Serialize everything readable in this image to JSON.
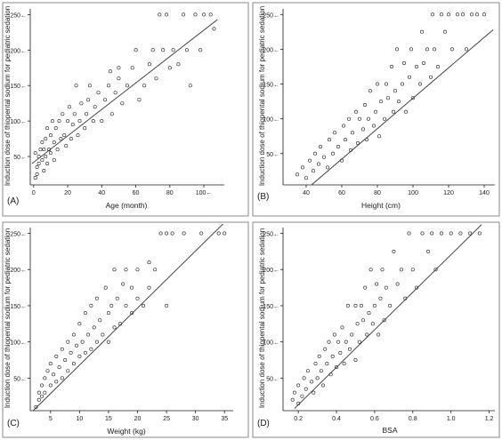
{
  "colors": {
    "background": "#ffffff",
    "panel_border": "#888888",
    "ink": "#1a1a1a",
    "fit_line": "#333333"
  },
  "chart_data": [
    {
      "type": "scatter",
      "panel_label": "(A)",
      "xlabel": "Age (month)",
      "ylabel": "Induction dose of thiopental sodium for pediatric sedation",
      "xlim": [
        -2,
        112
      ],
      "ylim": [
        10,
        258
      ],
      "xticks": [
        0,
        20,
        40,
        60,
        80,
        100
      ],
      "xtick_labels": [
        "0",
        "20",
        "40",
        "60",
        "80",
        "100←"
      ],
      "yticks": [
        50,
        100,
        150,
        200,
        250
      ],
      "ytick_labels": [
        "50←",
        "100←",
        "150←",
        "200←",
        "250←"
      ],
      "fit_line": {
        "x": [
          -1,
          108
        ],
        "y": [
          40,
          243
        ]
      },
      "points": [
        [
          1,
          20
        ],
        [
          2,
          25
        ],
        [
          2,
          35
        ],
        [
          3,
          40
        ],
        [
          3,
          50
        ],
        [
          1,
          55
        ],
        [
          4,
          60
        ],
        [
          5,
          45
        ],
        [
          5,
          70
        ],
        [
          6,
          30
        ],
        [
          6,
          60
        ],
        [
          7,
          75
        ],
        [
          7,
          50
        ],
        [
          8,
          40
        ],
        [
          8,
          90
        ],
        [
          9,
          60
        ],
        [
          10,
          55
        ],
        [
          10,
          80
        ],
        [
          11,
          100
        ],
        [
          12,
          70
        ],
        [
          12,
          45
        ],
        [
          13,
          90
        ],
        [
          14,
          60
        ],
        [
          15,
          100
        ],
        [
          16,
          75
        ],
        [
          17,
          110
        ],
        [
          18,
          80
        ],
        [
          19,
          65
        ],
        [
          20,
          100
        ],
        [
          21,
          120
        ],
        [
          22,
          75
        ],
        [
          23,
          95
        ],
        [
          24,
          110
        ],
        [
          25,
          150
        ],
        [
          26,
          80
        ],
        [
          27,
          100
        ],
        [
          28,
          125
        ],
        [
          30,
          90
        ],
        [
          31,
          110
        ],
        [
          32,
          130
        ],
        [
          33,
          150
        ],
        [
          35,
          100
        ],
        [
          36,
          120
        ],
        [
          38,
          140
        ],
        [
          40,
          100
        ],
        [
          42,
          130
        ],
        [
          44,
          150
        ],
        [
          45,
          170
        ],
        [
          46,
          110
        ],
        [
          48,
          140
        ],
        [
          50,
          160
        ],
        [
          50,
          175
        ],
        [
          52,
          125
        ],
        [
          55,
          150
        ],
        [
          58,
          175
        ],
        [
          60,
          200
        ],
        [
          62,
          130
        ],
        [
          65,
          150
        ],
        [
          68,
          180
        ],
        [
          70,
          200
        ],
        [
          72,
          160
        ],
        [
          74,
          250
        ],
        [
          76,
          200
        ],
        [
          78,
          250
        ],
        [
          80,
          175
        ],
        [
          82,
          200
        ],
        [
          85,
          180
        ],
        [
          88,
          250
        ],
        [
          90,
          200
        ],
        [
          92,
          150
        ],
        [
          95,
          250
        ],
        [
          98,
          200
        ],
        [
          100,
          250
        ],
        [
          104,
          250
        ],
        [
          106,
          230
        ]
      ]
    },
    {
      "type": "scatter",
      "panel_label": "(B)",
      "xlabel": "Height (cm)",
      "ylabel": "Induction dose of thiopental sodium for pediatric sedation",
      "xlim": [
        27,
        146
      ],
      "ylim": [
        5,
        258
      ],
      "xticks": [
        40,
        60,
        80,
        100,
        120,
        140
      ],
      "xtick_labels": [
        "40",
        "60",
        "80",
        "100",
        "120",
        "140"
      ],
      "yticks": [
        50,
        100,
        150,
        200,
        250
      ],
      "ytick_labels": [
        "50←",
        "100←",
        "150←",
        "200←",
        "250←"
      ],
      "fit_line": {
        "x": [
          43,
          145
        ],
        "y": [
          5,
          228
        ]
      },
      "points": [
        [
          35,
          20
        ],
        [
          38,
          30
        ],
        [
          40,
          15
        ],
        [
          42,
          40
        ],
        [
          44,
          25
        ],
        [
          45,
          50
        ],
        [
          47,
          35
        ],
        [
          48,
          60
        ],
        [
          50,
          45
        ],
        [
          52,
          30
        ],
        [
          53,
          70
        ],
        [
          55,
          50
        ],
        [
          56,
          80
        ],
        [
          58,
          60
        ],
        [
          60,
          40
        ],
        [
          61,
          90
        ],
        [
          62,
          70
        ],
        [
          64,
          100
        ],
        [
          65,
          55
        ],
        [
          66,
          80
        ],
        [
          68,
          110
        ],
        [
          69,
          65
        ],
        [
          70,
          100
        ],
        [
          72,
          85
        ],
        [
          73,
          120
        ],
        [
          74,
          70
        ],
        [
          75,
          100
        ],
        [
          76,
          140
        ],
        [
          78,
          90
        ],
        [
          79,
          110
        ],
        [
          80,
          150
        ],
        [
          81,
          75
        ],
        [
          82,
          125
        ],
        [
          84,
          100
        ],
        [
          85,
          150
        ],
        [
          86,
          130
        ],
        [
          88,
          175
        ],
        [
          89,
          110
        ],
        [
          90,
          140
        ],
        [
          91,
          200
        ],
        [
          92,
          125
        ],
        [
          94,
          150
        ],
        [
          95,
          180
        ],
        [
          96,
          110
        ],
        [
          98,
          160
        ],
        [
          99,
          200
        ],
        [
          100,
          130
        ],
        [
          102,
          175
        ],
        [
          104,
          150
        ],
        [
          105,
          225
        ],
        [
          106,
          180
        ],
        [
          108,
          200
        ],
        [
          110,
          160
        ],
        [
          111,
          250
        ],
        [
          112,
          200
        ],
        [
          114,
          175
        ],
        [
          116,
          250
        ],
        [
          118,
          225
        ],
        [
          120,
          250
        ],
        [
          122,
          200
        ],
        [
          125,
          250
        ],
        [
          128,
          250
        ],
        [
          130,
          200
        ],
        [
          133,
          250
        ],
        [
          136,
          250
        ],
        [
          140,
          250
        ]
      ]
    },
    {
      "type": "scatter",
      "panel_label": "(C)",
      "xlabel": "Weight (kg)",
      "ylabel": "Induction dose of thiopental sodium for pediatric sedation",
      "xlim": [
        1.5,
        36.5
      ],
      "ylim": [
        5,
        258
      ],
      "xticks": [
        5,
        10,
        15,
        20,
        25,
        30,
        35
      ],
      "xtick_labels": [
        "5",
        "10",
        "15",
        "20",
        "25",
        "30",
        "35"
      ],
      "yticks": [
        50,
        100,
        150,
        200,
        250
      ],
      "ytick_labels": [
        "50←",
        "100←",
        "150←",
        "200←",
        "250←"
      ],
      "fit_line": {
        "x": [
          2,
          35
        ],
        "y": [
          5,
          265
        ]
      },
      "points": [
        [
          2.5,
          10
        ],
        [
          3,
          20
        ],
        [
          3,
          30
        ],
        [
          3.5,
          40
        ],
        [
          3.5,
          25
        ],
        [
          4,
          50
        ],
        [
          4,
          30
        ],
        [
          4.5,
          60
        ],
        [
          5,
          40
        ],
        [
          5,
          70
        ],
        [
          5.5,
          55
        ],
        [
          6,
          80
        ],
        [
          6,
          45
        ],
        [
          6.5,
          65
        ],
        [
          7,
          90
        ],
        [
          7,
          50
        ],
        [
          7.5,
          75
        ],
        [
          8,
          100
        ],
        [
          8,
          60
        ],
        [
          8.5,
          85
        ],
        [
          9,
          110
        ],
        [
          9,
          70
        ],
        [
          9.5,
          95
        ],
        [
          10,
          125
        ],
        [
          10,
          80
        ],
        [
          10.5,
          100
        ],
        [
          11,
          140
        ],
        [
          11,
          85
        ],
        [
          11.5,
          110
        ],
        [
          12,
          150
        ],
        [
          12,
          90
        ],
        [
          12.5,
          120
        ],
        [
          13,
          100
        ],
        [
          13,
          160
        ],
        [
          13.5,
          130
        ],
        [
          14,
          110
        ],
        [
          14.5,
          175
        ],
        [
          15,
          140
        ],
        [
          15,
          100
        ],
        [
          15.5,
          150
        ],
        [
          16,
          200
        ],
        [
          16,
          120
        ],
        [
          16.5,
          160
        ],
        [
          17,
          125
        ],
        [
          17.5,
          180
        ],
        [
          18,
          150
        ],
        [
          18,
          200
        ],
        [
          19,
          175
        ],
        [
          19,
          140
        ],
        [
          20,
          200
        ],
        [
          20,
          160
        ],
        [
          21,
          150
        ],
        [
          22,
          210
        ],
        [
          22,
          175
        ],
        [
          23,
          200
        ],
        [
          24,
          250
        ],
        [
          25,
          250
        ],
        [
          25,
          150
        ],
        [
          26,
          250
        ],
        [
          28,
          250
        ],
        [
          31,
          250
        ],
        [
          34,
          250
        ],
        [
          35,
          250
        ]
      ]
    },
    {
      "type": "scatter",
      "panel_label": "(D)",
      "xlabel": "BSA",
      "ylabel": "Induction dose of thiopental sodium for pediatric sedation",
      "xlim": [
        0.12,
        1.23
      ],
      "ylim": [
        5,
        258
      ],
      "xticks": [
        0.2,
        0.4,
        0.6,
        0.8,
        1.0,
        1.2
      ],
      "xtick_labels": [
        "0.2",
        "0.4",
        "0.6",
        "0.8",
        "1.0",
        "1.2"
      ],
      "yticks": [
        50,
        100,
        150,
        200,
        250
      ],
      "ytick_labels": [
        "50←",
        "100←",
        "150←",
        "200←",
        "250←"
      ],
      "fit_line": {
        "x": [
          0.18,
          1.16
        ],
        "y": [
          8,
          262
        ]
      },
      "points": [
        [
          0.17,
          20
        ],
        [
          0.18,
          30
        ],
        [
          0.2,
          15
        ],
        [
          0.2,
          40
        ],
        [
          0.22,
          25
        ],
        [
          0.23,
          50
        ],
        [
          0.24,
          35
        ],
        [
          0.25,
          60
        ],
        [
          0.27,
          45
        ],
        [
          0.28,
          30
        ],
        [
          0.29,
          70
        ],
        [
          0.3,
          50
        ],
        [
          0.31,
          80
        ],
        [
          0.32,
          60
        ],
        [
          0.33,
          40
        ],
        [
          0.34,
          90
        ],
        [
          0.35,
          70
        ],
        [
          0.36,
          100
        ],
        [
          0.37,
          55
        ],
        [
          0.38,
          80
        ],
        [
          0.39,
          110
        ],
        [
          0.4,
          65
        ],
        [
          0.41,
          100
        ],
        [
          0.42,
          85
        ],
        [
          0.43,
          120
        ],
        [
          0.44,
          70
        ],
        [
          0.45,
          100
        ],
        [
          0.46,
          150
        ],
        [
          0.47,
          90
        ],
        [
          0.48,
          110
        ],
        [
          0.5,
          150
        ],
        [
          0.5,
          75
        ],
        [
          0.51,
          125
        ],
        [
          0.52,
          100
        ],
        [
          0.53,
          150
        ],
        [
          0.54,
          130
        ],
        [
          0.55,
          175
        ],
        [
          0.56,
          110
        ],
        [
          0.57,
          140
        ],
        [
          0.58,
          200
        ],
        [
          0.59,
          125
        ],
        [
          0.6,
          150
        ],
        [
          0.61,
          180
        ],
        [
          0.62,
          110
        ],
        [
          0.63,
          160
        ],
        [
          0.64,
          200
        ],
        [
          0.65,
          130
        ],
        [
          0.66,
          175
        ],
        [
          0.68,
          150
        ],
        [
          0.7,
          225
        ],
        [
          0.72,
          180
        ],
        [
          0.74,
          200
        ],
        [
          0.76,
          160
        ],
        [
          0.78,
          250
        ],
        [
          0.8,
          200
        ],
        [
          0.82,
          175
        ],
        [
          0.85,
          250
        ],
        [
          0.88,
          225
        ],
        [
          0.9,
          250
        ],
        [
          0.92,
          200
        ],
        [
          0.95,
          250
        ],
        [
          1.0,
          250
        ],
        [
          1.05,
          250
        ],
        [
          1.1,
          250
        ],
        [
          1.15,
          250
        ]
      ]
    }
  ]
}
